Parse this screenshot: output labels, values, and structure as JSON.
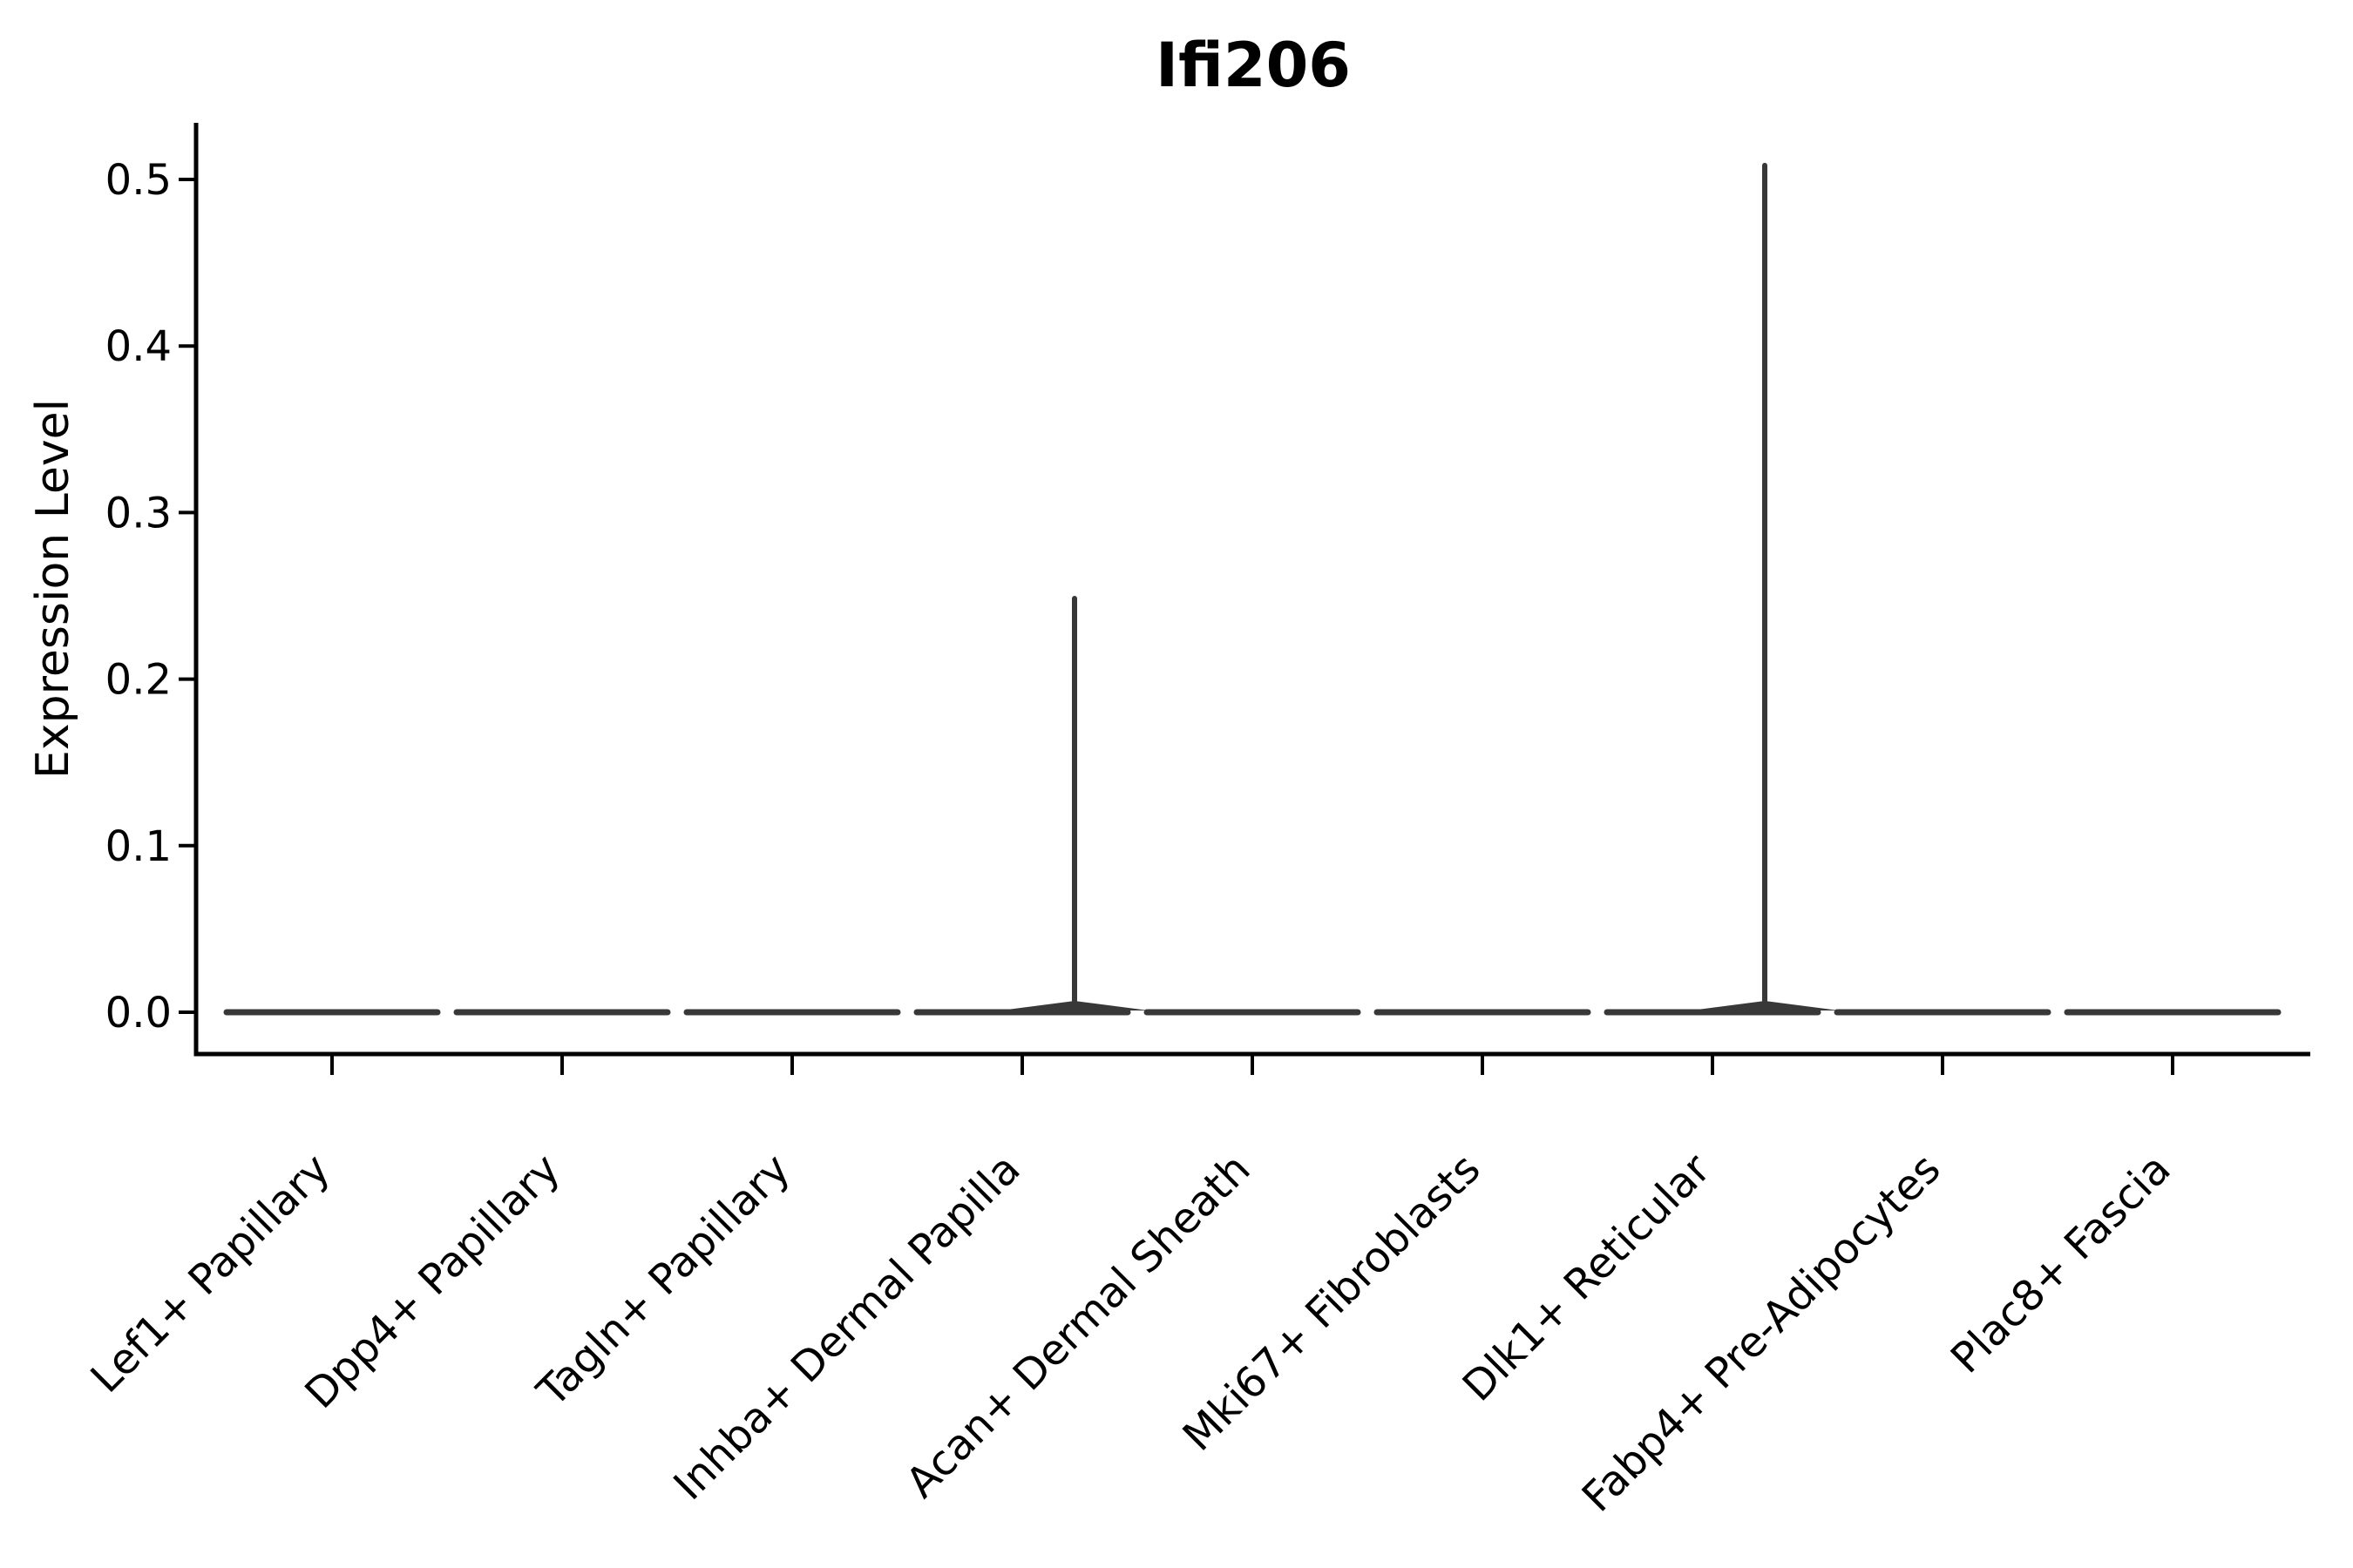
{
  "colors": {
    "background": "#ffffff",
    "axis": "#000000",
    "text": "#000000",
    "violin": "#383838"
  },
  "chart_data": {
    "type": "violin",
    "title": "Ifi206",
    "xlabel": "",
    "ylabel": "Expression Level",
    "categories": [
      "Lef1+ Papillary",
      "Dpp4+ Papillary",
      "Tagln+ Papillary",
      "Inhba+ Dermal Papilla",
      "Acan+ Dermal Sheath",
      "Mki67+ Fibroblasts",
      "Dlk1+ Reticular",
      "Fabp4+ Pre-Adipocytes",
      "Plac8+ Fascia"
    ],
    "series": [
      {
        "name": "max_expression",
        "values": [
          0,
          0,
          0,
          0.25,
          0,
          0,
          0.51,
          0,
          0
        ]
      },
      {
        "name": "median_expression",
        "values": [
          0,
          0,
          0,
          0,
          0,
          0,
          0,
          0,
          0
        ]
      }
    ],
    "ylim": [
      -0.025,
      0.535
    ],
    "y_ticks": [
      0.0,
      0.1,
      0.2,
      0.3,
      0.4,
      0.5
    ],
    "y_tick_labels": [
      "0.0",
      "0.1",
      "0.2",
      "0.3",
      "0.4",
      "0.5"
    ],
    "x_tick_label_rotation_deg": 45,
    "grid": false,
    "legend": "none",
    "violin_color": "#383838"
  }
}
